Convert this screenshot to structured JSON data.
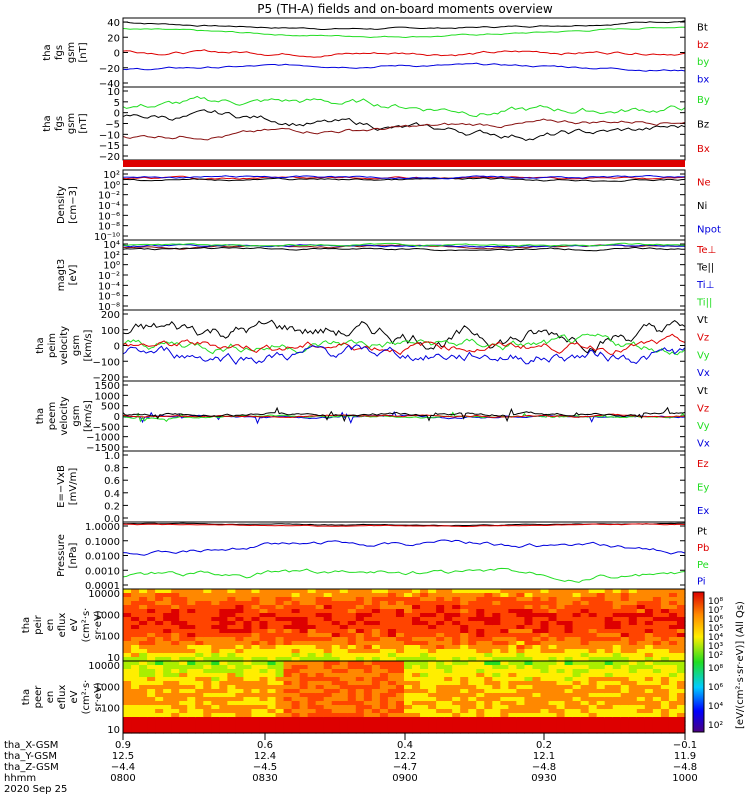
{
  "title": "P5 (TH-A) fields and on-board moments overview",
  "colors": {
    "black": "#000000",
    "red": "#dd0000",
    "green": "#22dd22",
    "blue": "#0000dd"
  },
  "panels": [
    {
      "id": "fgs",
      "ylabel": [
        "tha",
        "fgs",
        "gsm",
        "[nT]"
      ],
      "ticks": [
        "40",
        "20",
        "0",
        "−20",
        "−40"
      ],
      "legend": [
        {
          "text": "Bt",
          "color": "black"
        },
        {
          "text": "bz",
          "color": "red"
        },
        {
          "text": "by",
          "color": "green"
        },
        {
          "text": "bx",
          "color": "blue"
        }
      ]
    },
    {
      "id": "fgs_dsl",
      "ylabel": [
        "tha",
        "fgs",
        "gsm",
        "[nT]"
      ],
      "ticks": [
        "10",
        "5",
        "0",
        "−5",
        "−10",
        "−15",
        "−20"
      ],
      "legend": [
        {
          "text": "By",
          "color": "green"
        },
        {
          "text": "Bz",
          "color": "black"
        },
        {
          "text": "Bx",
          "color": "red"
        }
      ]
    },
    {
      "id": "density",
      "ylabel": [
        "Density",
        "[cm−3]"
      ],
      "ticks": [
        "10²",
        "10⁰",
        "10⁻²",
        "10⁻⁴",
        "10⁻⁶",
        "10⁻⁸",
        "10⁻¹⁰"
      ],
      "legend": [
        {
          "text": "Ne",
          "color": "red"
        },
        {
          "text": "Ni",
          "color": "black"
        },
        {
          "text": "Npot",
          "color": "blue"
        }
      ]
    },
    {
      "id": "temp",
      "ylabel": [
        "magt3",
        "[eV]"
      ],
      "ticks": [
        "10⁴",
        "10²",
        "10⁰",
        "10⁻²",
        "10⁻⁴",
        "10⁻⁶",
        "10⁻⁸"
      ],
      "legend": [
        {
          "text": "Te⊥",
          "color": "red"
        },
        {
          "text": "Te||",
          "color": "black"
        },
        {
          "text": "Ti⊥",
          "color": "blue"
        },
        {
          "text": "Ti||",
          "color": "green"
        }
      ]
    },
    {
      "id": "peim_v",
      "ylabel": [
        "tha",
        "peim",
        "velocity",
        "gsm",
        "[km/s]"
      ],
      "ticks": [
        "200",
        "100",
        "0",
        "−100",
        "−200"
      ],
      "legend": [
        {
          "text": "Vt",
          "color": "black"
        },
        {
          "text": "Vz",
          "color": "red"
        },
        {
          "text": "Vy",
          "color": "green"
        },
        {
          "text": "Vx",
          "color": "blue"
        }
      ]
    },
    {
      "id": "peem_v",
      "ylabel": [
        "tha",
        "peem",
        "velocity",
        "gsm",
        "[km/s]"
      ],
      "ticks": [
        "1500",
        "1000",
        "500",
        "0",
        "−500",
        "−1000",
        "−1500"
      ],
      "legend": [
        {
          "text": "Vt",
          "color": "black"
        },
        {
          "text": "Vz",
          "color": "red"
        },
        {
          "text": "Vy",
          "color": "green"
        },
        {
          "text": "Vx",
          "color": "blue"
        }
      ]
    },
    {
      "id": "efield",
      "ylabel": [
        "E=−VxB",
        "[mV/m]"
      ],
      "ticks": [
        "1.0",
        "0.8",
        "0.6",
        "0.4",
        "0.2",
        "0.0"
      ],
      "legend": [
        {
          "text": "Ez",
          "color": "red"
        },
        {
          "text": "Ey",
          "color": "green"
        },
        {
          "text": "Ex",
          "color": "blue"
        }
      ]
    },
    {
      "id": "pressure",
      "ylabel": [
        "Pressure",
        "[nPa]"
      ],
      "ticks": [
        "1.0000",
        "0.1000",
        "0.0100",
        "0.0010",
        "0.0001"
      ],
      "legend": [
        {
          "text": "Pt",
          "color": "black"
        },
        {
          "text": "Pb",
          "color": "red"
        },
        {
          "text": "Pe",
          "color": "green"
        },
        {
          "text": "Pi",
          "color": "blue"
        }
      ]
    },
    {
      "id": "peir_spec",
      "ylabel": [
        "tha",
        "peir",
        "en",
        "eflux",
        "eV",
        "(cm²·s·",
        "sr·eV)"
      ],
      "ticks": [
        "10000",
        "1000",
        "100",
        "10"
      ],
      "legend": []
    },
    {
      "id": "peer_spec",
      "ylabel": [
        "tha",
        "peer",
        "en",
        "eflux",
        "eV",
        "(cm²·s·",
        "sr·eV)"
      ],
      "ticks": [
        "10000",
        "1000",
        "100",
        "10"
      ],
      "legend": []
    }
  ],
  "colorbar": {
    "ticks_upper": [
      "10⁸",
      "10⁷",
      "10⁶",
      "10⁵",
      "10⁴",
      "10³",
      "10²"
    ],
    "ticks_lower": [
      "10⁸",
      "10⁶",
      "10⁴",
      "10²"
    ],
    "label": "[eV/(cm²·s·sr·eV)] (All Qs)"
  },
  "xaxis": {
    "rows": [
      {
        "label": "tha_X-GSM",
        "values": [
          "0.9",
          "0.6",
          "0.4",
          "0.2",
          "−0.1"
        ]
      },
      {
        "label": "tha_Y-GSM",
        "values": [
          "12.5",
          "12.4",
          "12.2",
          "12.1",
          "11.9"
        ]
      },
      {
        "label": "tha_Z-GSM",
        "values": [
          "−4.4",
          "−4.5",
          "−4.7",
          "−4.8",
          "−4.8"
        ]
      },
      {
        "label": "hhmm",
        "values": [
          "0800",
          "0830",
          "0900",
          "0930",
          "1000"
        ]
      }
    ],
    "date": "2020 Sep 25"
  },
  "chart_data": [
    {
      "type": "line",
      "title": "P5 (TH-A) fields and on-board moments overview",
      "ylabel": "tha fgs gsm [nT]",
      "ylim": [
        -40,
        45
      ],
      "x": [
        "0800",
        "0830",
        "0900",
        "0930",
        "1000"
      ],
      "series": [
        {
          "name": "Bt",
          "values": [
            40,
            38,
            32,
            38,
            42
          ]
        },
        {
          "name": "bz",
          "values": [
            5,
            3,
            2,
            5,
            3
          ]
        },
        {
          "name": "by",
          "values": [
            33,
            30,
            22,
            30,
            35
          ]
        },
        {
          "name": "bx",
          "values": [
            -20,
            -15,
            -13,
            -17,
            -20
          ]
        }
      ]
    },
    {
      "type": "line",
      "ylabel": "tha fgs gsm [nT]",
      "ylim": [
        -23,
        10
      ],
      "x": [
        "0800",
        "0830",
        "0900",
        "0930",
        "1000"
      ],
      "series": [
        {
          "name": "By",
          "values": [
            2,
            0,
            5,
            3,
            5
          ]
        },
        {
          "name": "Bz",
          "values": [
            -7,
            -2,
            -3,
            -8,
            -6
          ]
        },
        {
          "name": "Bx",
          "values": [
            -12,
            -10,
            -8,
            -7,
            -5
          ]
        }
      ]
    },
    {
      "type": "line",
      "ylabel": "Density [cm−3]",
      "log": true,
      "ylim": [
        1e-10,
        100.0
      ],
      "series": [
        {
          "name": "Ne",
          "values": [
            1,
            1,
            0.8,
            1,
            1
          ]
        },
        {
          "name": "Ni",
          "values": [
            1,
            1,
            0.8,
            1,
            1
          ]
        },
        {
          "name": "Npot",
          "values": [
            3,
            3,
            2,
            3,
            3
          ]
        }
      ]
    },
    {
      "type": "line",
      "ylabel": "magt3 [eV]",
      "log": true,
      "ylim": [
        1e-08,
        10000.0
      ],
      "series": [
        {
          "name": "Te⊥",
          "values": [
            100,
            100,
            200,
            100,
            100
          ]
        },
        {
          "name": "Te||",
          "values": [
            100,
            100,
            200,
            100,
            100
          ]
        },
        {
          "name": "Ti⊥",
          "values": [
            1000,
            1000,
            2000,
            1000,
            1000
          ]
        },
        {
          "name": "Ti||",
          "values": [
            1000,
            1000,
            2000,
            1000,
            1000
          ]
        }
      ]
    },
    {
      "type": "line",
      "ylabel": "tha peim velocity gsm [km/s]",
      "ylim": [
        -200,
        200
      ],
      "series": [
        {
          "name": "Vt",
          "values": [
            100,
            90,
            110,
            100,
            120
          ]
        },
        {
          "name": "Vz",
          "values": [
            0,
            -10,
            10,
            0,
            5
          ]
        },
        {
          "name": "Vy",
          "values": [
            20,
            10,
            30,
            20,
            20
          ]
        },
        {
          "name": "Vx",
          "values": [
            -60,
            -50,
            -70,
            -60,
            -80
          ]
        }
      ]
    },
    {
      "type": "line",
      "ylabel": "tha peem velocity gsm [km/s]",
      "ylim": [
        -1500,
        1500
      ],
      "series": [
        {
          "name": "Vt",
          "values": [
            100,
            100,
            150,
            100,
            100
          ]
        },
        {
          "name": "Vz",
          "values": [
            0,
            0,
            0,
            0,
            0
          ]
        },
        {
          "name": "Vy",
          "values": [
            -50,
            -50,
            -50,
            -50,
            -50
          ]
        },
        {
          "name": "Vx",
          "values": [
            -80,
            -80,
            -80,
            -80,
            -80
          ]
        }
      ]
    },
    {
      "type": "line",
      "ylabel": "E=−VxB [mV/m]",
      "ylim": [
        0,
        1
      ],
      "series": [
        {
          "name": "Ez",
          "values": []
        },
        {
          "name": "Ey",
          "values": []
        },
        {
          "name": "Ex",
          "values": []
        }
      ]
    },
    {
      "type": "line",
      "ylabel": "Pressure [nPa]",
      "log": true,
      "ylim": [
        0.0001,
        1
      ],
      "series": [
        {
          "name": "Pt",
          "values": [
            0.8,
            0.8,
            0.6,
            0.8,
            0.8
          ]
        },
        {
          "name": "Pb",
          "values": [
            0.8,
            0.7,
            0.5,
            0.7,
            0.8
          ]
        },
        {
          "name": "Pe",
          "values": [
            0.002,
            0.001,
            0.004,
            0.002,
            0.001
          ]
        },
        {
          "name": "Pi",
          "values": [
            0.02,
            0.05,
            0.1,
            0.06,
            0.03
          ]
        }
      ]
    },
    {
      "type": "heatmap",
      "ylabel": "tha peir en eflux",
      "log": true,
      "ylim": [
        5,
        30000
      ],
      "zlim": [
        100,
        100000000.0
      ]
    },
    {
      "type": "heatmap",
      "ylabel": "tha peer en eflux",
      "log": true,
      "ylim": [
        5,
        30000
      ],
      "zlim": [
        100,
        100000000.0
      ]
    }
  ]
}
